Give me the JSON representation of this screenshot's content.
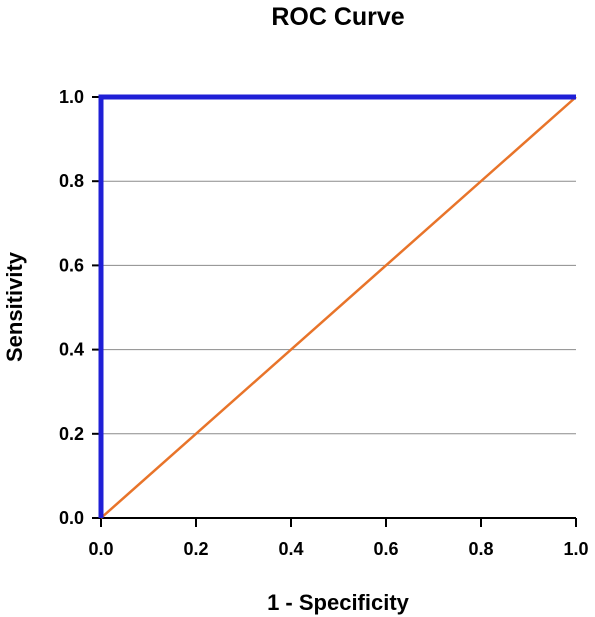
{
  "chart_data": {
    "type": "line",
    "title": "ROC Curve",
    "xlabel": "1 - Specificity",
    "ylabel": "Sensitivity",
    "xlim": [
      0,
      1
    ],
    "ylim": [
      0,
      1
    ],
    "x_ticks": [
      0.0,
      0.2,
      0.4,
      0.6,
      0.8,
      1.0
    ],
    "y_ticks": [
      0.0,
      0.2,
      0.4,
      0.6,
      0.8,
      1.0
    ],
    "x_tick_labels": [
      "0.0",
      "0.2",
      "0.4",
      "0.6",
      "0.8",
      "1.0"
    ],
    "y_tick_labels": [
      "0.0",
      "0.2",
      "0.4",
      "0.6",
      "0.8",
      "1.0"
    ],
    "grid": "horizontal",
    "legend": "none",
    "series": [
      {
        "color": "#1f1fd6",
        "x": [
          0,
          0,
          1
        ],
        "y": [
          0,
          1,
          1
        ]
      },
      {
        "color": "#e8742a",
        "x": [
          0,
          1
        ],
        "y": [
          0,
          1
        ]
      }
    ]
  }
}
